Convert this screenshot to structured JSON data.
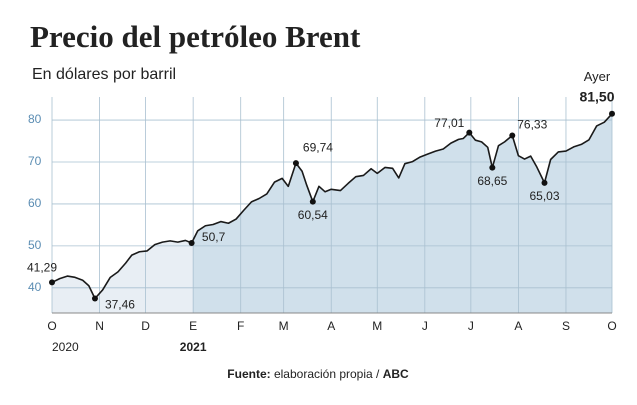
{
  "chart_data": {
    "type": "area-line",
    "title": "Precio del petróleo Brent",
    "subtitle": "En dólares por barril",
    "x": [
      0,
      5,
      10,
      15,
      20,
      24,
      28,
      33,
      38,
      43,
      48,
      52,
      57,
      62,
      67,
      72,
      77,
      82,
      87,
      91,
      95,
      100,
      105,
      110,
      115,
      120,
      125,
      130,
      135,
      140,
      145,
      150,
      154,
      159,
      163,
      166,
      170,
      174,
      178,
      182,
      188,
      193,
      198,
      203,
      208,
      212,
      217,
      222,
      226,
      230,
      235,
      240,
      245,
      250,
      255,
      260,
      265,
      268,
      272,
      276,
      280,
      284,
      287,
      291,
      295,
      300,
      304,
      308,
      312,
      316,
      321,
      325,
      330,
      335,
      340,
      345,
      350,
      355,
      360,
      365
    ],
    "series": [
      {
        "name": "Brent",
        "color": "#1a1a1a",
        "values": [
          41.29,
          42.2,
          42.8,
          42.5,
          41.8,
          40.5,
          37.46,
          39.5,
          42.5,
          43.8,
          45.9,
          47.8,
          48.6,
          48.8,
          50.3,
          50.9,
          51.2,
          50.9,
          51.3,
          50.7,
          53.6,
          54.8,
          55.1,
          55.8,
          55.4,
          56.4,
          58.5,
          60.5,
          61.3,
          62.4,
          65.2,
          66.1,
          64.2,
          69.74,
          67.8,
          64.5,
          60.54,
          64.2,
          62.9,
          63.5,
          63.2,
          64.9,
          66.5,
          66.8,
          68.4,
          67.3,
          68.7,
          68.5,
          66.2,
          69.6,
          70.1,
          71.2,
          71.9,
          72.6,
          73.1,
          74.5,
          75.4,
          75.6,
          77.01,
          75.2,
          74.8,
          73.5,
          68.65,
          73.9,
          74.8,
          76.33,
          71.5,
          70.7,
          71.4,
          68.8,
          65.03,
          70.6,
          72.4,
          72.6,
          73.6,
          74.2,
          75.3,
          78.6,
          79.5,
          81.5
        ]
      }
    ],
    "xlim": [
      0,
      365
    ],
    "xticks": [
      {
        "value": 0,
        "label": "O"
      },
      {
        "value": 31,
        "label": "N"
      },
      {
        "value": 61,
        "label": "D"
      },
      {
        "value": 92,
        "label": "E"
      },
      {
        "value": 123,
        "label": "F"
      },
      {
        "value": 151,
        "label": "M"
      },
      {
        "value": 182,
        "label": "A"
      },
      {
        "value": 212,
        "label": "M"
      },
      {
        "value": 243,
        "label": "J"
      },
      {
        "value": 273,
        "label": "J"
      },
      {
        "value": 304,
        "label": "A"
      },
      {
        "value": 335,
        "label": "S"
      },
      {
        "value": 365,
        "label": "O"
      }
    ],
    "years": [
      {
        "x": 0,
        "label": "2020"
      },
      {
        "x": 92,
        "label": "2021"
      }
    ],
    "ylim": [
      34,
      85.5
    ],
    "yticks": [
      40,
      50,
      60,
      70,
      80
    ],
    "grid": true,
    "fills": [
      "#e8eef4",
      "#d0e0eb"
    ],
    "annotations": [
      {
        "x": 0,
        "value": 41.29,
        "label": "41,29"
      },
      {
        "x": 28,
        "value": 37.46,
        "label": "37,46"
      },
      {
        "x": 91,
        "value": 50.7,
        "label": "50,7"
      },
      {
        "x": 159,
        "value": 69.74,
        "label": "69,74"
      },
      {
        "x": 170,
        "value": 60.54,
        "label": "60,54"
      },
      {
        "x": 272,
        "value": 77.01,
        "label": "77,01"
      },
      {
        "x": 287,
        "value": 68.65,
        "label": "68,65"
      },
      {
        "x": 300,
        "value": 76.33,
        "label": "76,33"
      },
      {
        "x": 321,
        "value": 65.03,
        "label": "65,03"
      },
      {
        "x": 365,
        "value": 81.5,
        "label": "81,50",
        "note": "Ayer"
      }
    ],
    "source": {
      "prefix": "Fuente:",
      "text": " elaboración propia / ",
      "brand": "ABC"
    }
  }
}
